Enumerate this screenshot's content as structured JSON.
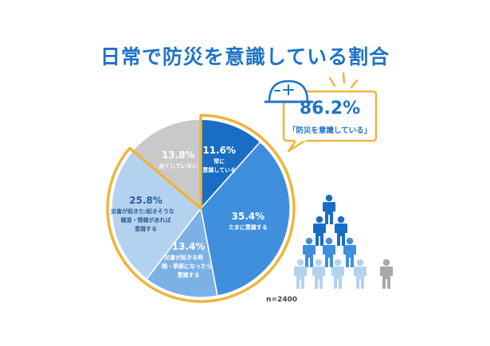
{
  "title": "日常で防災を意識している割合",
  "callout": {
    "value": "86.2%",
    "label": "「防災を意識している」"
  },
  "n_label": "n=2400",
  "chart_data": {
    "type": "pie",
    "title": "日常で防災を意識している割合",
    "slices": [
      {
        "label_lines": [
          "常に",
          "意識している"
        ],
        "pct_label": "11.6%",
        "value": 11.6,
        "color": "#1a6dc4",
        "text_color": "#ffffff"
      },
      {
        "label_lines": [
          "たまに意識する"
        ],
        "pct_label": "35.4%",
        "value": 35.4,
        "color": "#3f8fdc",
        "text_color": "#ffffff"
      },
      {
        "label_lines": [
          "災害が起きる時",
          "期・季節になったら",
          "意識する"
        ],
        "pct_label": "13.4%",
        "value": 13.4,
        "color": "#7cb1e6",
        "text_color": "#ffffff"
      },
      {
        "label_lines": [
          "災害が起きた/起きそうな",
          "報道・情報があれば",
          "意識する"
        ],
        "pct_label": "25.8%",
        "value": 25.8,
        "color": "#b3d2f0",
        "text_color": "#2d5f93"
      },
      {
        "label_lines": [
          "全くしていない"
        ],
        "pct_label": "13.8%",
        "value": 13.8,
        "color": "#c9c9c9",
        "text_color": "#ffffff"
      }
    ],
    "highlight_total": 86.2,
    "highlight_color": "#f0b43c"
  },
  "people_colors": {
    "dark": "#1a6dc4",
    "mid": "#3f8fdc",
    "light": "#b3d2f0",
    "gray": "#a8a8a8"
  }
}
